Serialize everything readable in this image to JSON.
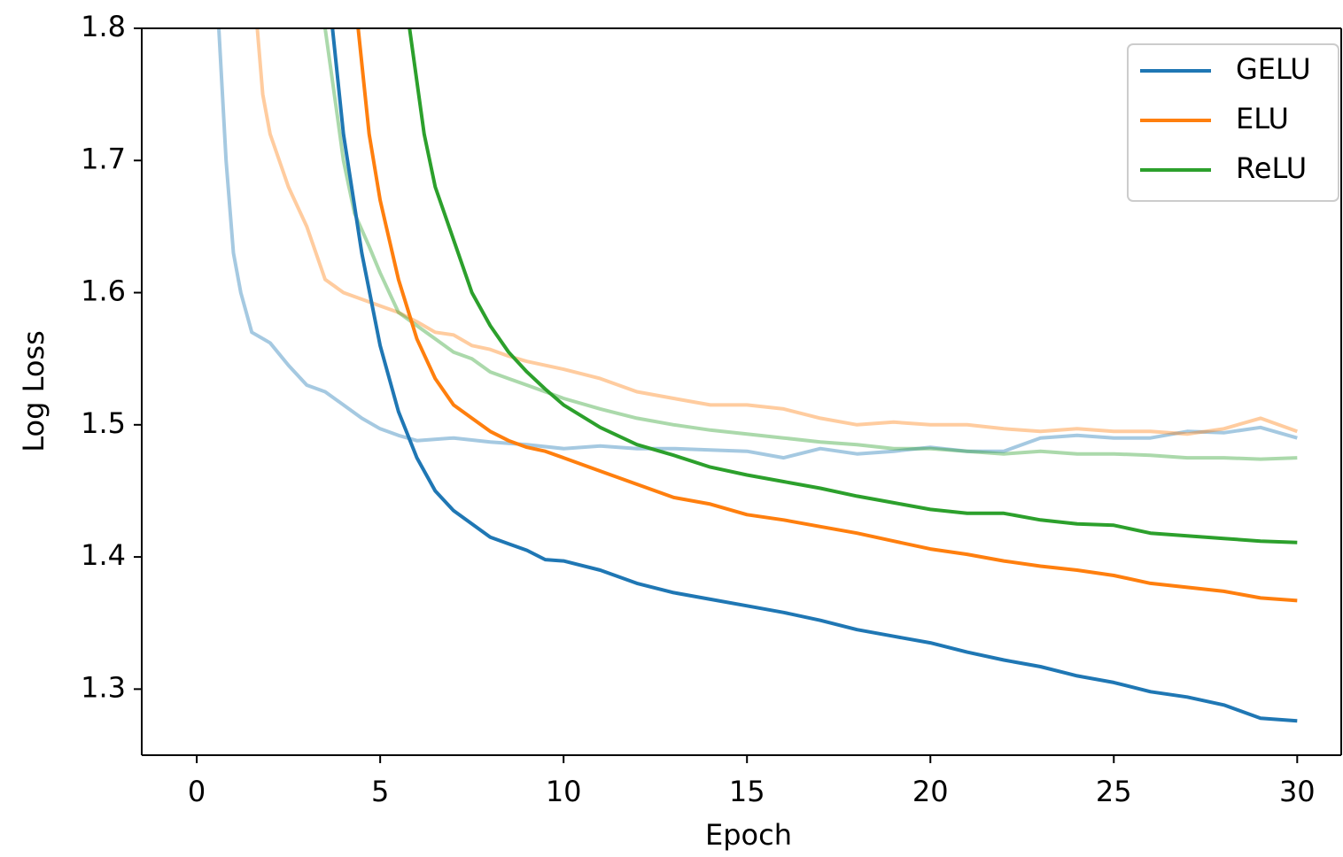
{
  "chart_data": {
    "type": "line",
    "x_label": "Epoch",
    "y_label": "Log Loss",
    "xlim": [
      -1.5,
      31.2
    ],
    "ylim": [
      1.25,
      1.8
    ],
    "xticks": [
      0,
      5,
      10,
      15,
      20,
      25,
      30
    ],
    "yticks": [
      1.3,
      1.4,
      1.5,
      1.6,
      1.7,
      1.8
    ],
    "legend": "upper right",
    "series": [
      {
        "color": "#1f77b4",
        "opacity": 0.4,
        "x": [
          0.6,
          0.8,
          1,
          1.2,
          1.5,
          2,
          2.5,
          3,
          3.5,
          4,
          4.5,
          5,
          5.5,
          6,
          7,
          8,
          9,
          10,
          11,
          12,
          13,
          14,
          15,
          16,
          17,
          18,
          19,
          20,
          21,
          22,
          23,
          24,
          25,
          26,
          27,
          28,
          29,
          30
        ],
        "values": [
          1.8,
          1.7,
          1.63,
          1.6,
          1.57,
          1.562,
          1.545,
          1.53,
          1.525,
          1.515,
          1.505,
          1.497,
          1.492,
          1.488,
          1.49,
          1.487,
          1.485,
          1.482,
          1.484,
          1.482,
          1.482,
          1.481,
          1.48,
          1.475,
          1.482,
          1.478,
          1.48,
          1.483,
          1.48,
          1.48,
          1.49,
          1.492,
          1.49,
          1.49,
          1.495,
          1.494,
          1.498,
          1.49
        ]
      },
      {
        "color": "#ff7f0e",
        "opacity": 0.4,
        "x": [
          1.65,
          1.8,
          2,
          2.5,
          3,
          3.5,
          4,
          4.5,
          5,
          5.5,
          6,
          6.5,
          7,
          7.5,
          8,
          8.5,
          9,
          10,
          11,
          12,
          13,
          14,
          15,
          16,
          17,
          18,
          19,
          20,
          21,
          22,
          23,
          24,
          25,
          26,
          27,
          28,
          29,
          30
        ],
        "values": [
          1.8,
          1.75,
          1.72,
          1.68,
          1.65,
          1.61,
          1.6,
          1.595,
          1.59,
          1.585,
          1.578,
          1.57,
          1.568,
          1.56,
          1.557,
          1.552,
          1.548,
          1.542,
          1.535,
          1.525,
          1.52,
          1.515,
          1.515,
          1.512,
          1.505,
          1.5,
          1.502,
          1.5,
          1.5,
          1.497,
          1.495,
          1.497,
          1.495,
          1.495,
          1.493,
          1.497,
          1.505,
          1.495
        ]
      },
      {
        "color": "#2ca02c",
        "opacity": 0.4,
        "x": [
          3.5,
          3.8,
          4,
          4.3,
          4.7,
          5,
          5.5,
          6,
          6.5,
          7,
          7.5,
          8,
          8.5,
          9,
          10,
          11,
          12,
          13,
          14,
          15,
          16,
          17,
          18,
          19,
          20,
          21,
          22,
          23,
          24,
          25,
          26,
          27,
          28,
          29,
          30
        ],
        "values": [
          1.8,
          1.74,
          1.7,
          1.66,
          1.635,
          1.615,
          1.585,
          1.575,
          1.565,
          1.555,
          1.55,
          1.54,
          1.535,
          1.53,
          1.52,
          1.512,
          1.505,
          1.5,
          1.496,
          1.493,
          1.49,
          1.487,
          1.485,
          1.482,
          1.482,
          1.48,
          1.478,
          1.48,
          1.478,
          1.478,
          1.477,
          1.475,
          1.475,
          1.474,
          1.475
        ]
      },
      {
        "name": "GELU",
        "color": "#1f77b4",
        "opacity": 1,
        "x": [
          3.7,
          4,
          4.5,
          5,
          5.5,
          6,
          6.5,
          7,
          7.5,
          8,
          8.5,
          9,
          9.5,
          10,
          11,
          12,
          13,
          14,
          15,
          16,
          17,
          18,
          19,
          20,
          21,
          22,
          23,
          24,
          25,
          26,
          27,
          28,
          29,
          30
        ],
        "values": [
          1.8,
          1.72,
          1.63,
          1.56,
          1.51,
          1.475,
          1.45,
          1.435,
          1.425,
          1.415,
          1.41,
          1.405,
          1.398,
          1.397,
          1.39,
          1.38,
          1.373,
          1.368,
          1.363,
          1.358,
          1.352,
          1.345,
          1.34,
          1.335,
          1.328,
          1.322,
          1.317,
          1.31,
          1.305,
          1.298,
          1.294,
          1.288,
          1.278,
          1.276
        ]
      },
      {
        "name": "ELU",
        "color": "#ff7f0e",
        "opacity": 1,
        "x": [
          4.4,
          4.7,
          5,
          5.5,
          6,
          6.5,
          7,
          7.5,
          8,
          8.5,
          9,
          9.5,
          10,
          11,
          12,
          13,
          14,
          15,
          16,
          17,
          18,
          19,
          20,
          21,
          22,
          23,
          24,
          25,
          26,
          27,
          28,
          29,
          30
        ],
        "values": [
          1.8,
          1.72,
          1.67,
          1.61,
          1.565,
          1.535,
          1.515,
          1.505,
          1.495,
          1.488,
          1.483,
          1.48,
          1.475,
          1.465,
          1.455,
          1.445,
          1.44,
          1.432,
          1.428,
          1.423,
          1.418,
          1.412,
          1.406,
          1.402,
          1.397,
          1.393,
          1.39,
          1.386,
          1.38,
          1.377,
          1.374,
          1.369,
          1.367
        ]
      },
      {
        "name": "ReLU",
        "color": "#2ca02c",
        "opacity": 1,
        "x": [
          5.8,
          6.2,
          6.5,
          7,
          7.5,
          8,
          8.5,
          9,
          9.5,
          10,
          11,
          12,
          13,
          14,
          15,
          16,
          17,
          18,
          19,
          20,
          21,
          22,
          23,
          24,
          25,
          26,
          27,
          28,
          29,
          30
        ],
        "values": [
          1.8,
          1.72,
          1.68,
          1.64,
          1.6,
          1.575,
          1.555,
          1.54,
          1.527,
          1.515,
          1.498,
          1.485,
          1.477,
          1.468,
          1.462,
          1.457,
          1.452,
          1.446,
          1.441,
          1.436,
          1.433,
          1.433,
          1.428,
          1.425,
          1.424,
          1.418,
          1.416,
          1.414,
          1.412,
          1.411
        ]
      }
    ]
  }
}
